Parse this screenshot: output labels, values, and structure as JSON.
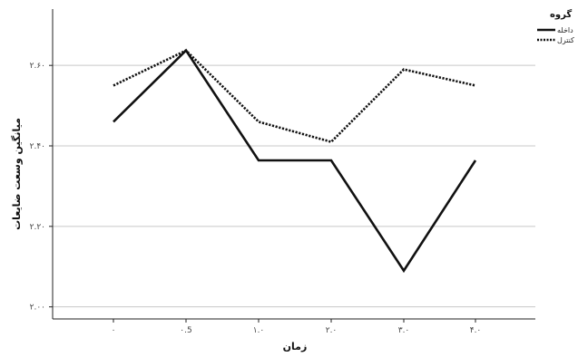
{
  "chart_data": {
    "type": "line",
    "xlabel": "زمان",
    "ylabel": "میانگین وسعت ضایعات",
    "categories": [
      "۰",
      "۰.5",
      "۱.۰",
      "۲.۰",
      "۳.۰",
      "۴.۰"
    ],
    "y_tick_labels": [
      "۲.۰۰",
      "۲.۲۰",
      "۲.۴۰",
      "۲.۶۰"
    ],
    "y_ticks": [
      2.0,
      2.2,
      2.4,
      2.6
    ],
    "ylim": [
      1.97,
      2.74
    ],
    "grid": true,
    "legend": {
      "title": "گروه",
      "placement": "top-right",
      "clipped": true
    },
    "series": [
      {
        "name": "داخله",
        "style": "solid",
        "color": "#111111",
        "values": [
          2.46,
          2.637,
          2.364,
          2.364,
          2.09,
          2.364
        ]
      },
      {
        "name": "کنترل",
        "style": "dotted",
        "color": "#111111",
        "values": [
          2.55,
          2.637,
          2.46,
          2.41,
          2.59,
          2.55
        ]
      }
    ]
  }
}
